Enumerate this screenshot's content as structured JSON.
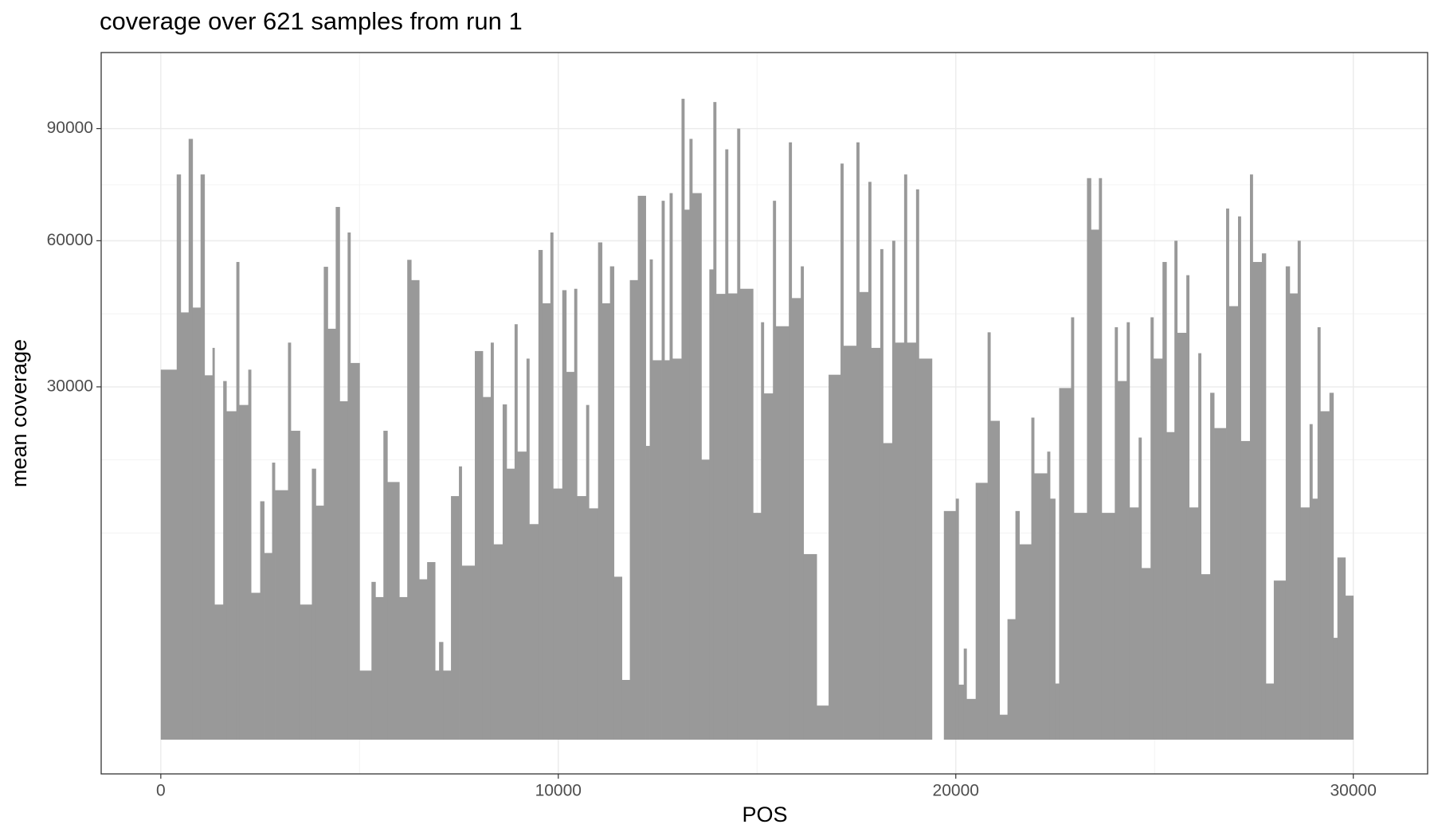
{
  "chart_data": {
    "type": "bar",
    "title": "coverage over 621 samples from run 1",
    "x_label": "POS",
    "y_label": "mean coverage",
    "color": "#999999",
    "yscale": "sqrt",
    "grid": true,
    "xlim": [
      -1500,
      31870
    ],
    "ylim": [
      0,
      113800
    ],
    "xticks": [
      0,
      10000,
      20000,
      30000
    ],
    "yticks": [
      30000,
      60000,
      90000
    ],
    "x": [
      0,
      400,
      500,
      700,
      800,
      1000,
      1100,
      1300,
      1350,
      1570,
      1650,
      1900,
      1970,
      2200,
      2270,
      2500,
      2600,
      2800,
      2870,
      3200,
      3270,
      3500,
      3800,
      3900,
      4100,
      4200,
      4400,
      4500,
      4700,
      4770,
      5000,
      5300,
      5400,
      5600,
      5700,
      6000,
      6200,
      6300,
      6500,
      6700,
      6900,
      7000,
      7100,
      7300,
      7500,
      7570,
      7900,
      8100,
      8300,
      8370,
      8600,
      8700,
      8900,
      8970,
      9200,
      9270,
      9500,
      9600,
      9800,
      9870,
      10100,
      10200,
      10400,
      10470,
      10700,
      10770,
      11000,
      11100,
      11300,
      11400,
      11600,
      11800,
      12000,
      12200,
      12300,
      12370,
      12600,
      12670,
      12800,
      12870,
      13100,
      13170,
      13300,
      13370,
      13600,
      13800,
      13900,
      13970,
      14200,
      14270,
      14500,
      14570,
      14900,
      15100,
      15170,
      15400,
      15470,
      15800,
      15870,
      16100,
      16170,
      16500,
      16800,
      17100,
      17170,
      17500,
      17570,
      17800,
      17870,
      18100,
      18170,
      18400,
      18470,
      18700,
      18770,
      19000,
      19070,
      19400,
      19700,
      20000,
      20070,
      20200,
      20270,
      20500,
      20800,
      20870,
      21100,
      21300,
      21500,
      21600,
      21900,
      21970,
      22300,
      22370,
      22500,
      22600,
      22900,
      22970,
      23300,
      23400,
      23600,
      23670,
      24000,
      24070,
      24300,
      24370,
      24600,
      24670,
      24900,
      24970,
      25200,
      25300,
      25500,
      25570,
      25800,
      25870,
      26100,
      26170,
      26400,
      26500,
      26800,
      26870,
      27100,
      27170,
      27400,
      27470,
      27700,
      27800,
      28000,
      28300,
      28400,
      28600,
      28670,
      28900,
      28970,
      29100,
      29170,
      29400,
      29500,
      29600,
      29800
    ],
    "values": [
      33000,
      77000,
      44000,
      87000,
      45000,
      77000,
      32000,
      37000,
      4400,
      31000,
      26000,
      55000,
      27000,
      33000,
      5200,
      13700,
      8400,
      18500,
      15000,
      38000,
      23000,
      4400,
      17700,
      13200,
      53900,
      40700,
      68400,
      27600,
      62000,
      34200,
      1150,
      6000,
      4900,
      23000,
      16000,
      4900,
      55500,
      50900,
      6200,
      7600,
      1150,
      2300,
      1150,
      14300,
      18000,
      7300,
      36400,
      28300,
      38000,
      9200,
      27100,
      17700,
      41600,
      20000,
      35000,
      11200,
      57800,
      45900,
      62000,
      15200,
      48700,
      32600,
      49000,
      14300,
      27000,
      12900,
      59600,
      45900,
      54000,
      6400,
      860,
      50900,
      71300,
      20800,
      55600,
      34700,
      70000,
      34700,
      72000,
      35000,
      99000,
      67700,
      87000,
      72000,
      18900,
      53300,
      98000,
      47900,
      84000,
      48000,
      90000,
      49000,
      12400,
      42000,
      28900,
      70000,
      41200,
      86000,
      47000,
      54000,
      8300,
      280,
      32100,
      80000,
      37400,
      86000,
      48300,
      75000,
      37000,
      58000,
      21200,
      60000,
      38000,
      77000,
      38000,
      73000,
      35000,
      0,
      12600,
      14000,
      730,
      2000,
      400,
      15900,
      40000,
      24500,
      150,
      3500,
      12600,
      9200,
      25000,
      17100,
      20000,
      14000,
      760,
      29800,
      43000,
      12400,
      76000,
      62700,
      76000,
      12400,
      41000,
      31000,
      42000,
      13000,
      22000,
      7100,
      43000,
      35000,
      55000,
      22800,
      60000,
      39900,
      52000,
      13000,
      36000,
      6600,
      29000,
      23400,
      68000,
      45300,
      66000,
      21500,
      77000,
      55000,
      57000,
      760,
      6100,
      54000,
      48000,
      60000,
      13000,
      24000,
      14000,
      41000,
      26000,
      29000,
      2500,
      8000,
      5000
    ]
  }
}
